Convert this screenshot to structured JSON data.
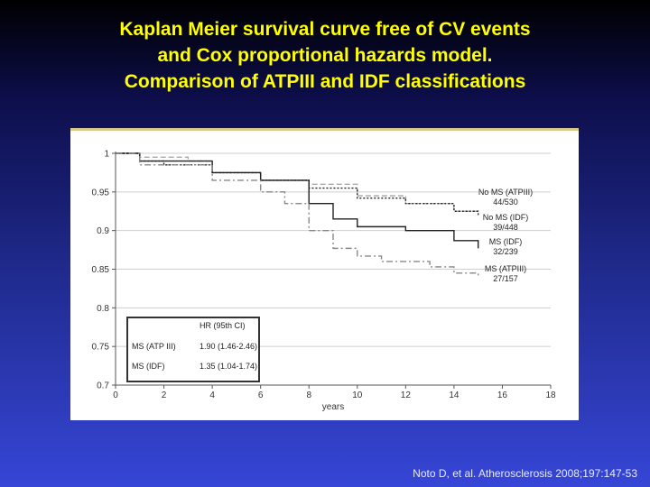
{
  "slide": {
    "title_lines": [
      "Kaplan Meier survival curve free of CV events",
      "and Cox proportional hazards model.",
      "Comparison of ATPIII and IDF classifications"
    ],
    "citation": "Noto D, et al. Atherosclerosis 2008;197:147-53"
  },
  "colors": {
    "title": "#ffff00",
    "background_top": "#000000",
    "background_bottom": "#3646d6"
  },
  "chart_data": {
    "type": "line",
    "title": "",
    "xlabel": "years",
    "ylabel": "",
    "xlim": [
      0,
      18
    ],
    "ylim": [
      0.7,
      1.0
    ],
    "x_ticks": [
      0,
      2,
      4,
      6,
      8,
      10,
      12,
      14,
      16,
      18
    ],
    "y_ticks": [
      0.7,
      0.75,
      0.8,
      0.85,
      0.9,
      0.95,
      1
    ],
    "y_tick_labels": [
      "0.7",
      "0.75",
      "0.8",
      "0.85",
      "0.9",
      "0.95",
      "1"
    ],
    "grid": "horizontal",
    "series": [
      {
        "name": "No MS (ATPIII)",
        "count": "44/530",
        "style": "dashed",
        "color": "#aaaaaa",
        "x": [
          0,
          1,
          3,
          4,
          6,
          8,
          10,
          12,
          14,
          15
        ],
        "y": [
          1.0,
          0.995,
          0.99,
          0.975,
          0.965,
          0.96,
          0.945,
          0.935,
          0.925,
          0.922
        ]
      },
      {
        "name": "No MS (IDF)",
        "count": "39/448",
        "style": "dotted",
        "color": "#222222",
        "x": [
          0,
          1,
          2,
          4,
          6,
          8,
          10,
          12,
          14,
          15
        ],
        "y": [
          1.0,
          0.99,
          0.985,
          0.975,
          0.965,
          0.955,
          0.942,
          0.935,
          0.925,
          0.92
        ]
      },
      {
        "name": "MS (IDF)",
        "count": "32/239",
        "style": "solid",
        "color": "#222222",
        "x": [
          0,
          1,
          4,
          6,
          8,
          9,
          10,
          12,
          13,
          14,
          15
        ],
        "y": [
          1.0,
          0.99,
          0.975,
          0.965,
          0.935,
          0.915,
          0.905,
          0.9,
          0.9,
          0.887,
          0.877
        ]
      },
      {
        "name": "MS (ATPIII)",
        "count": "27/157",
        "style": "dashdot",
        "color": "#888888",
        "x": [
          0,
          1,
          4,
          6,
          7,
          8,
          9,
          10,
          11,
          13,
          14,
          15
        ],
        "y": [
          1.0,
          0.985,
          0.965,
          0.95,
          0.935,
          0.9,
          0.877,
          0.867,
          0.86,
          0.853,
          0.845,
          0.84
        ]
      }
    ],
    "hr_table": {
      "header": "HR (95th CI)",
      "rows": [
        {
          "label": "MS (ATP III)",
          "value": "1.90 (1.46-2.46)"
        },
        {
          "label": "MS (IDF)",
          "value": "1.35 (1.04-1.74)"
        }
      ]
    }
  }
}
